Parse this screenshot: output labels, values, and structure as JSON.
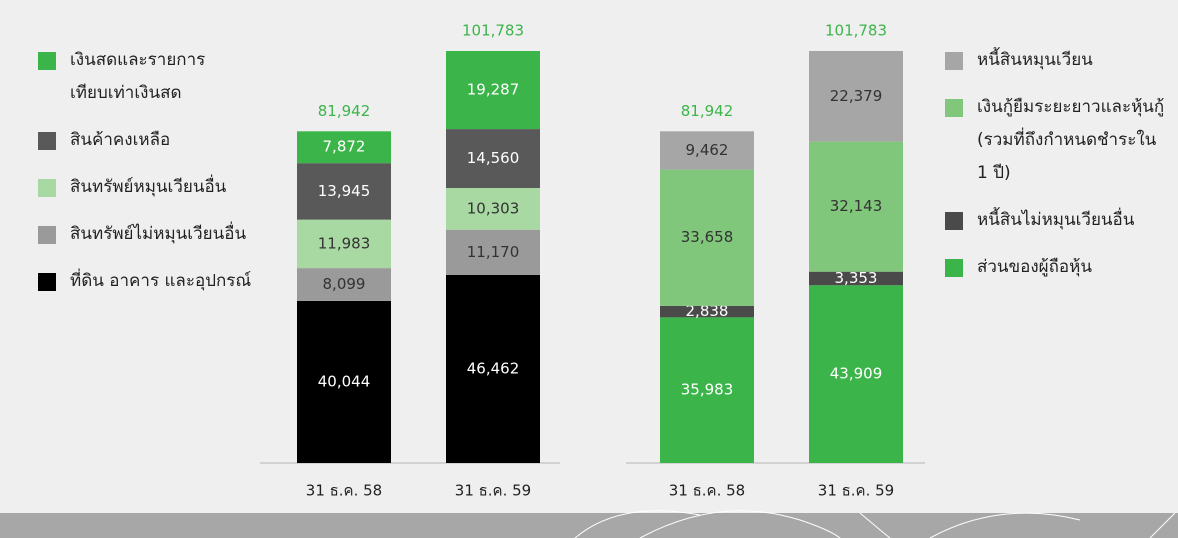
{
  "chart_data": [
    {
      "type": "bar",
      "stacked": true,
      "categories": [
        "31 ธ.ค. 58",
        "31 ธ.ค. 59"
      ],
      "totals": [
        81942,
        101783
      ],
      "total_labels": [
        "81,942",
        "101,783"
      ],
      "total_color": "#3bb54a",
      "series": [
        {
          "name": "เงินสดและรายการ\nเทียบเท่าเงินสด",
          "color": "#3bb54a",
          "values": [
            7872,
            19287
          ],
          "value_labels": [
            "7,872",
            "19,287"
          ]
        },
        {
          "name": "สินค้าคงเหลือ",
          "color": "#595959",
          "values": [
            13945,
            14560
          ],
          "value_labels": [
            "13,945",
            "14,560"
          ]
        },
        {
          "name": "สินทรัพย์หมุนเวียนอื่น",
          "color": "#a9d9a2",
          "values": [
            11983,
            10303
          ],
          "value_labels": [
            "11,983",
            "10,303"
          ]
        },
        {
          "name": "สินทรัพย์ไม่หมุนเวียนอื่น",
          "color": "#9a9a9a",
          "values": [
            8099,
            11170
          ],
          "value_labels": [
            "8,099",
            "11,170"
          ]
        },
        {
          "name": "ที่ดิน อาคาร และอุปกรณ์",
          "color": "#000000",
          "values": [
            40044,
            46462
          ],
          "value_labels": [
            "40,044",
            "46,462"
          ]
        }
      ]
    },
    {
      "type": "bar",
      "stacked": true,
      "categories": [
        "31 ธ.ค. 58",
        "31 ธ.ค. 59"
      ],
      "totals": [
        81942,
        101783
      ],
      "total_labels": [
        "81,942",
        "101,783"
      ],
      "total_color": "#3bb54a",
      "series": [
        {
          "name": "หนี้สินหมุนเวียน",
          "color": "#a6a6a6",
          "values": [
            9462,
            22379
          ],
          "value_labels": [
            "9,462",
            "22,379"
          ]
        },
        {
          "name": "เงินกู้ยืมระยะยาวและหุ้นกู้\n(รวมที่ถึงกำหนดชำระใน\n1 ปี)",
          "color": "#80c67b",
          "values": [
            33658,
            32143
          ],
          "value_labels": [
            "33,658",
            "32,143"
          ]
        },
        {
          "name": "หนี้สินไม่หมุนเวียนอื่น",
          "color": "#4a4a4a",
          "values": [
            2838,
            3353
          ],
          "value_labels": [
            "2,838",
            "3,353"
          ]
        },
        {
          "name": "ส่วนของผู้ถือหุ้น",
          "color": "#3bb54a",
          "values": [
            35983,
            43909
          ],
          "value_labels": [
            "35,983",
            "43,909"
          ]
        }
      ]
    }
  ]
}
